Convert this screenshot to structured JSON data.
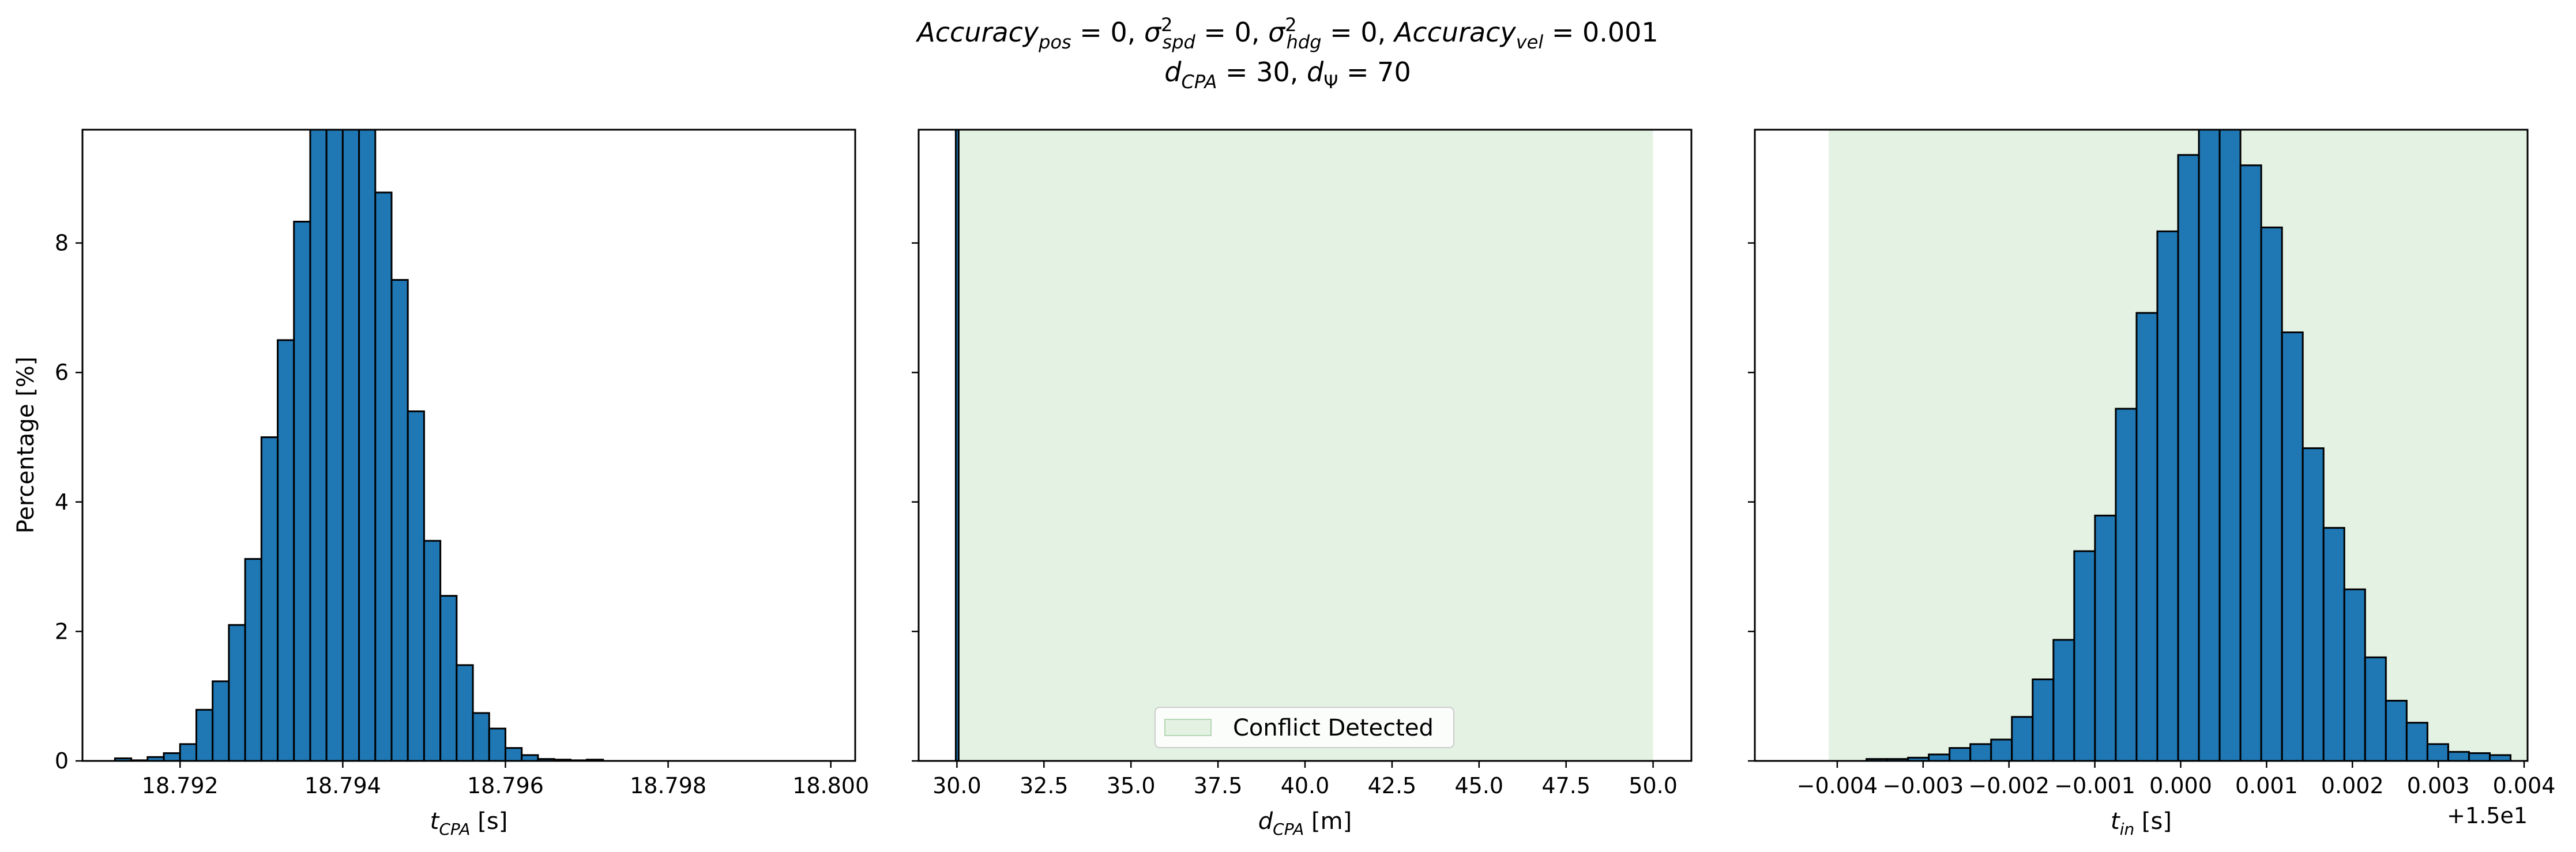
{
  "figure": {
    "title_line1": "Accuracy_pos = 0, σ²_spd = 0, σ²_hdg = 0, Accuracy_vel = 0.001",
    "title_line2": "d_CPA = 30, d_Ψ = 70"
  },
  "colors": {
    "bar_fill": "#1f77b4",
    "bar_edge": "#000000",
    "span_fill": "#d9ecd9",
    "span_alpha": 0.7
  },
  "chart_data": [
    {
      "type": "bar",
      "name": "t_cpa_histogram",
      "xlabel": "t_CPA [s]",
      "ylabel": "Percentage [%]",
      "xlim": [
        18.7908,
        18.8003
      ],
      "ylim": [
        0,
        9.75
      ],
      "xticks": [
        18.792,
        18.794,
        18.796,
        18.798,
        18.8
      ],
      "xtick_labels": [
        "18.792",
        "18.794",
        "18.796",
        "18.798",
        "18.800"
      ],
      "yticks": [
        0,
        2,
        4,
        6,
        8
      ],
      "ytick_labels": [
        "0",
        "2",
        "4",
        "6",
        "8"
      ],
      "bin_start": 18.7912,
      "bin_width": 0.0002,
      "values": [
        0.04,
        0.01,
        0.06,
        0.12,
        0.26,
        0.79,
        1.23,
        2.1,
        3.12,
        5.0,
        6.5,
        8.33,
        9.9,
        9.9,
        9.9,
        9.9,
        8.78,
        7.43,
        5.4,
        3.4,
        2.55,
        1.48,
        0.74,
        0.5,
        0.2,
        0.09,
        0.03,
        0.02,
        0.01,
        0.02,
        0.0
      ]
    },
    {
      "type": "area",
      "name": "d_cpa_histogram",
      "xlabel": "d_CPA [m]",
      "ylabel": "",
      "xlim": [
        28.9,
        51.1
      ],
      "ylim": [
        0,
        9.75
      ],
      "xticks": [
        30.0,
        32.5,
        35.0,
        37.5,
        40.0,
        42.5,
        45.0,
        47.5,
        50.0
      ],
      "xtick_labels": [
        "30.0",
        "32.5",
        "35.0",
        "37.5",
        "40.0",
        "42.5",
        "45.0",
        "47.5",
        "50.0"
      ],
      "span": [
        30,
        50
      ],
      "spike_x": 30.0,
      "legend": [
        "Conflict Detected"
      ],
      "legend_loc": "lower center"
    },
    {
      "type": "bar",
      "name": "t_in_histogram",
      "xlabel": "t_in [s]",
      "ylabel": "",
      "xlim": [
        -0.00496,
        0.00404
      ],
      "ylim": [
        0,
        9.75
      ],
      "xticks": [
        -0.004,
        -0.003,
        -0.002,
        -0.001,
        0.0,
        0.001,
        0.002,
        0.003,
        0.004
      ],
      "xtick_labels": [
        "−0.004",
        "−0.003",
        "−0.002",
        "−0.001",
        "0.000",
        "0.001",
        "0.002",
        "0.003",
        "0.004"
      ],
      "offset_label": "+1.5e1",
      "span": [
        -0.0041,
        0.0045
      ],
      "bin_start": -0.00366,
      "bin_width": 0.000242,
      "values": [
        0.03,
        0.03,
        0.05,
        0.1,
        0.2,
        0.26,
        0.33,
        0.68,
        1.26,
        1.87,
        3.24,
        3.79,
        5.44,
        6.92,
        8.18,
        9.36,
        9.9,
        9.9,
        9.2,
        8.24,
        6.62,
        4.83,
        3.6,
        2.65,
        1.6,
        0.93,
        0.59,
        0.26,
        0.14,
        0.12,
        0.09,
        0.0
      ],
      "yticks": [
        0,
        2,
        4,
        6,
        8
      ]
    }
  ]
}
